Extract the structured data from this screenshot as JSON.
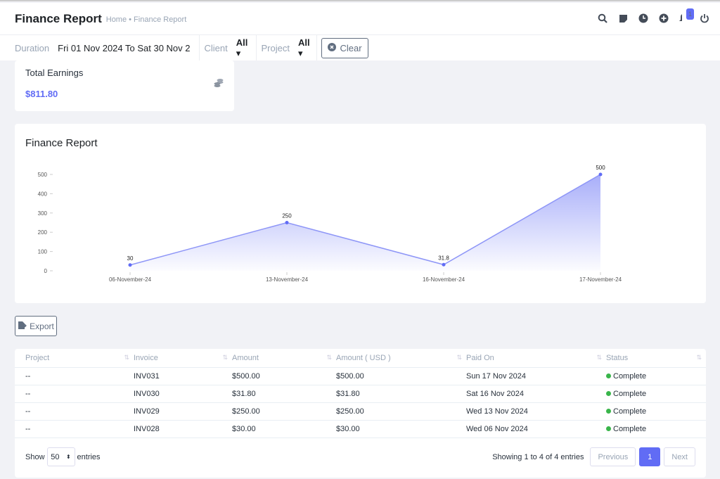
{
  "header": {
    "title": "Finance Report",
    "breadcrumb": "Home • Finance Report",
    "notification_count": "1"
  },
  "filters": {
    "duration_label": "Duration",
    "duration_value": "Fri 01 Nov 2024 To Sat 30 Nov 2",
    "client_label": "Client",
    "client_value": "All",
    "project_label": "Project",
    "project_value": "All",
    "clear_label": "Clear"
  },
  "kpi": {
    "title": "Total Earnings",
    "value": "$811.80"
  },
  "chart_title": "Finance Report",
  "chart_data": {
    "type": "area",
    "title": "Finance Report",
    "categories": [
      "06-November-24",
      "13-November-24",
      "16-November-24",
      "17-November-24"
    ],
    "values": [
      30,
      250,
      31.8,
      500
    ],
    "labels": [
      "30",
      "250",
      "31.8",
      "500"
    ],
    "yticks": [
      0,
      100,
      200,
      300,
      400,
      500
    ],
    "ylim": [
      0,
      500
    ],
    "color": "#616cf5"
  },
  "export_label": "Export",
  "table": {
    "columns": [
      "Project",
      "Invoice",
      "Amount",
      "Amount ( USD )",
      "Paid On",
      "Status"
    ],
    "rows": [
      [
        "--",
        "INV031",
        "$500.00",
        "$500.00",
        "Sun 17 Nov 2024",
        "Complete"
      ],
      [
        "--",
        "INV030",
        "$31.80",
        "$31.80",
        "Sat 16 Nov 2024",
        "Complete"
      ],
      [
        "--",
        "INV029",
        "$250.00",
        "$250.00",
        "Wed 13 Nov 2024",
        "Complete"
      ],
      [
        "--",
        "INV028",
        "$30.00",
        "$30.00",
        "Wed 06 Nov 2024",
        "Complete"
      ]
    ],
    "show": "Show",
    "page_size": "50",
    "entries": "entries",
    "info": "Showing 1 to 4 of 4 entries",
    "prev": "Previous",
    "page": "1",
    "next": "Next"
  }
}
